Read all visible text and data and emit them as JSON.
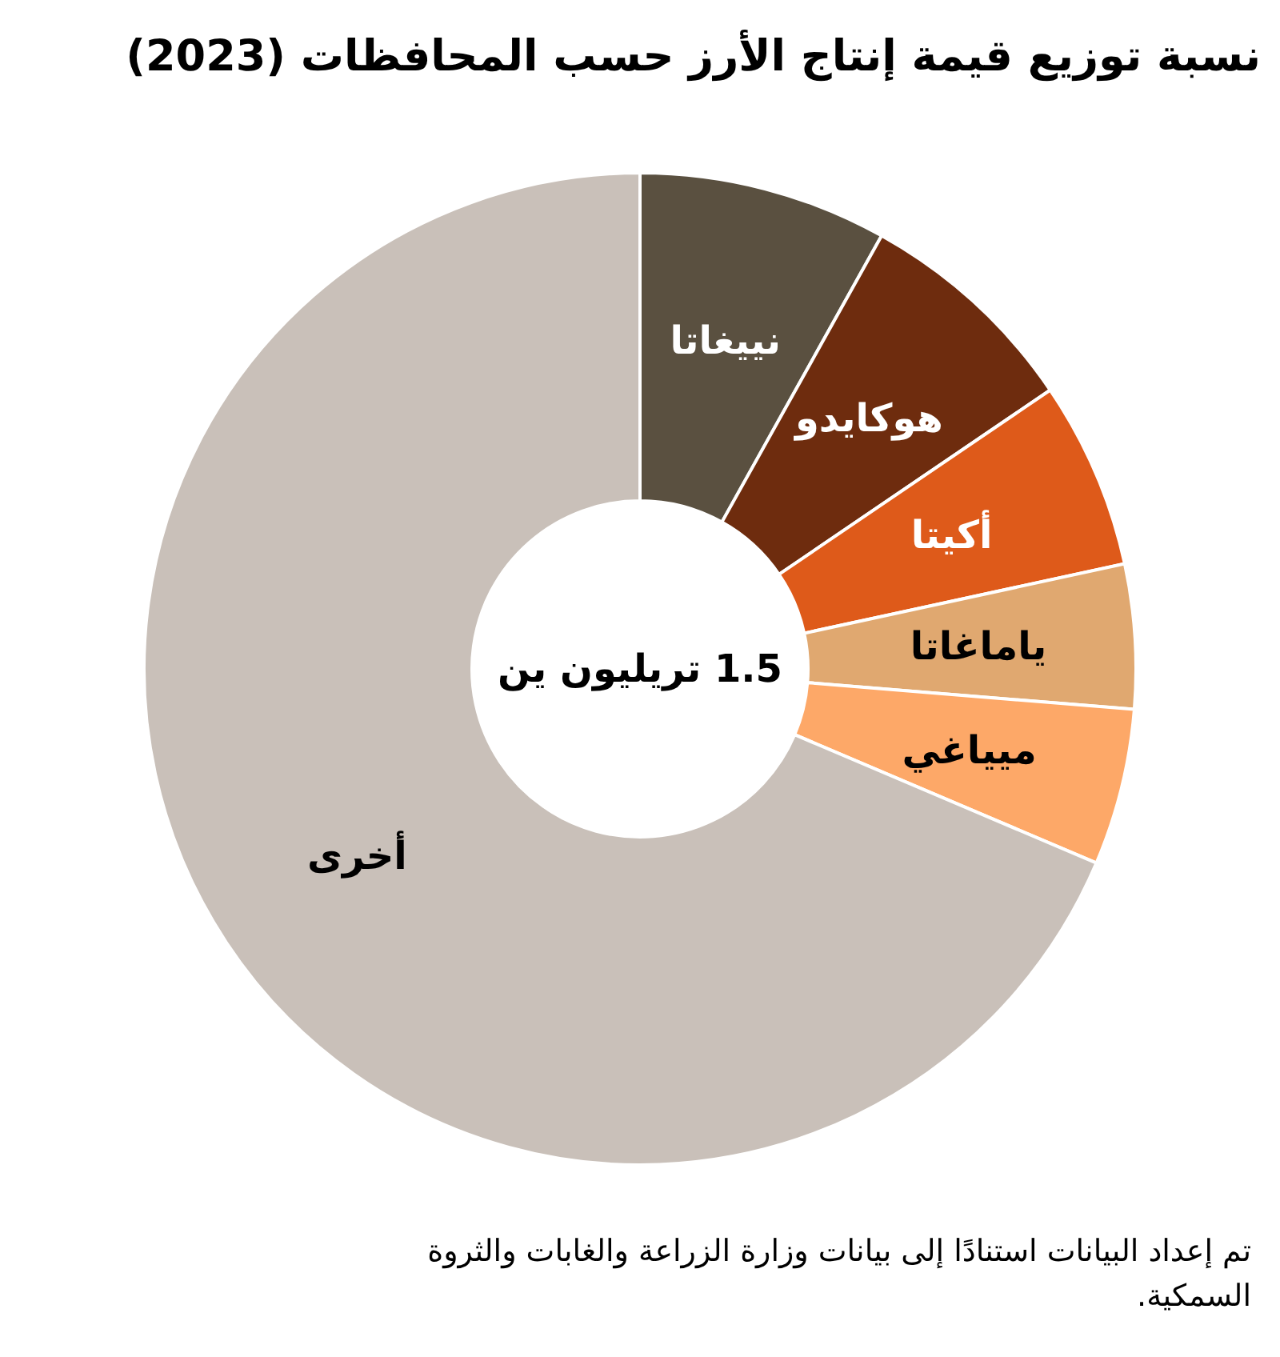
{
  "chart_data": {
    "type": "donut",
    "title": "نسبة توزيع قيمة إنتاج الأرز حسب المحافظات (2023)",
    "categories": [
      "نييغاتا",
      "هوكايدو",
      "أكيتا",
      "ياماغاتا",
      "ميياغي",
      "أخرى"
    ],
    "values": [
      8.1,
      7.4,
      6.1,
      4.7,
      5.1,
      68.6
    ],
    "colors": [
      "#5a5040",
      "#6e2c0e",
      "#de5a1a",
      "#e0a870",
      "#fda868",
      "#c9c0b9"
    ],
    "annotations": [
      "1.5 تريليون ين",
      "تم إعداد البيانات استنادًا إلى بيانات وزارة الزراعة والغابات والثروة السمكية."
    ]
  }
}
